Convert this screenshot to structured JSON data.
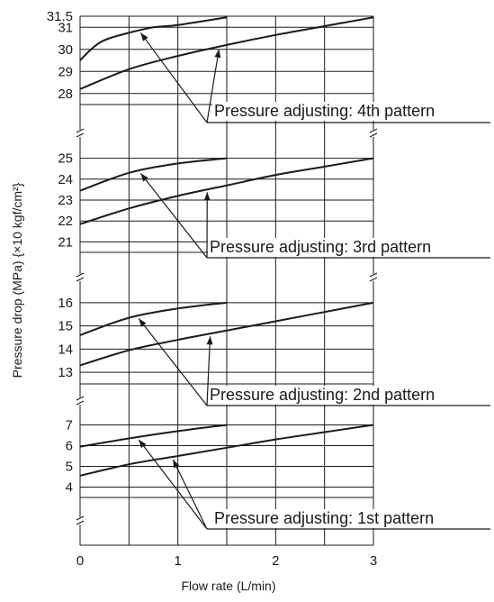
{
  "chart_data": {
    "type": "line",
    "xlabel": "Flow rate (L/min)",
    "ylabel": "Pressure drop (MPa) {×10 kgf/cm²}",
    "xlim": [
      0,
      3
    ],
    "x_ticks": [
      0,
      1,
      2,
      3
    ],
    "x_tick_labels": [
      "0",
      "1",
      "2",
      "3"
    ],
    "grid": true,
    "panels": [
      {
        "annotation": "Pressure adjusting: 4th pattern",
        "ylim": [
          27.5,
          31.5
        ],
        "y_ticks": [
          28,
          29,
          30,
          31,
          31.5
        ],
        "y_tick_labels": [
          "28",
          "29",
          "30",
          "31",
          "31.5"
        ],
        "series": [
          {
            "x": [
              0,
              0.1,
              0.2,
              0.3,
              0.5,
              0.75,
              1.0,
              1.5
            ],
            "y": [
              29.5,
              29.95,
              30.3,
              30.5,
              30.75,
              31.0,
              31.1,
              31.45
            ]
          },
          {
            "x": [
              0,
              0.5,
              1.0,
              1.5,
              2.0,
              2.5,
              3.0
            ],
            "y": [
              28.2,
              29.1,
              29.7,
              30.2,
              30.65,
              31.05,
              31.45
            ]
          }
        ]
      },
      {
        "annotation": "Pressure adjusting: 3rd pattern",
        "ylim": [
          20.5,
          25.5
        ],
        "y_ticks": [
          21,
          22,
          23,
          24,
          25
        ],
        "y_tick_labels": [
          "21",
          "22",
          "23",
          "24",
          "25"
        ],
        "series": [
          {
            "x": [
              0,
              0.5,
              1.0,
              1.5
            ],
            "y": [
              23.45,
              24.3,
              24.75,
              25.0
            ]
          },
          {
            "x": [
              0,
              0.5,
              1.0,
              1.5,
              2.0,
              2.5,
              3.0
            ],
            "y": [
              21.85,
              22.6,
              23.2,
              23.7,
              24.2,
              24.6,
              25.0
            ]
          }
        ]
      },
      {
        "annotation": "Pressure adjusting: 2nd pattern",
        "ylim": [
          12.5,
          16.5
        ],
        "y_ticks": [
          13,
          14,
          15,
          16
        ],
        "y_tick_labels": [
          "13",
          "14",
          "15",
          "16"
        ],
        "series": [
          {
            "x": [
              0,
              0.5,
              1.0,
              1.5
            ],
            "y": [
              14.6,
              15.35,
              15.75,
              16.0
            ]
          },
          {
            "x": [
              0,
              0.5,
              1.0,
              1.5,
              2.0,
              2.5,
              3.0
            ],
            "y": [
              13.3,
              13.95,
              14.4,
              14.8,
              15.2,
              15.6,
              16.0
            ]
          }
        ]
      },
      {
        "annotation": "Pressure adjusting: 1st pattern",
        "ylim": [
          3.5,
          7.5
        ],
        "y_ticks": [
          4,
          5,
          6,
          7
        ],
        "y_tick_labels": [
          "4",
          "5",
          "6",
          "7"
        ],
        "series": [
          {
            "x": [
              0,
              0.5,
              1.0,
              1.5
            ],
            "y": [
              5.95,
              6.35,
              6.7,
              7.0
            ]
          },
          {
            "x": [
              0,
              0.5,
              1.0,
              1.5,
              2.0,
              2.5,
              3.0
            ],
            "y": [
              4.55,
              5.1,
              5.5,
              5.9,
              6.3,
              6.65,
              7.0
            ]
          }
        ]
      }
    ]
  }
}
